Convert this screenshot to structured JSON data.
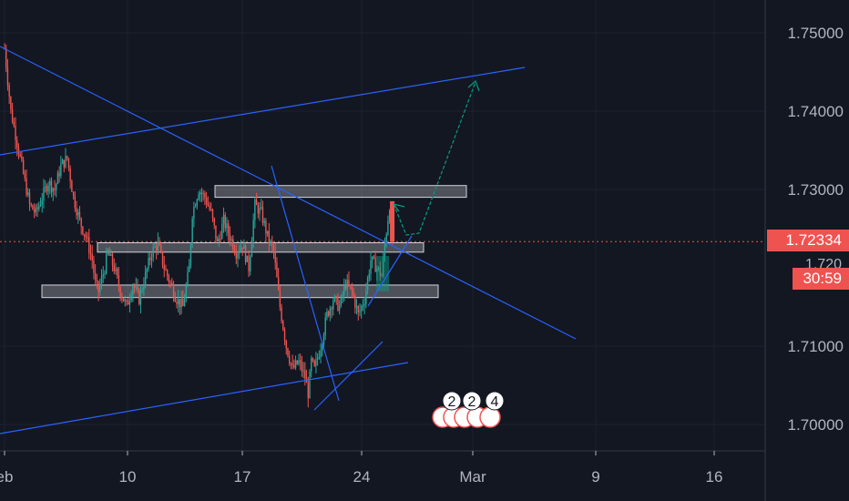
{
  "colors": {
    "background": "#131722",
    "grid": "#1e222d",
    "up": "#26a69a",
    "down": "#ef5350",
    "trendline": "#2962ff",
    "arrow": "#089981",
    "axis_text": "#b2b5be",
    "zone_fill": "rgba(255,255,255,0.25)",
    "zone_stroke": "#d1d4dc"
  },
  "chart_data": {
    "type": "candlestick",
    "x_tick_labels": [
      "eb",
      "10",
      "17",
      "24",
      "Mar",
      "9",
      "16"
    ],
    "y_tick_labels": [
      "1.75000",
      "1.74000",
      "1.73000",
      "1.71000",
      "1.70000"
    ],
    "ylim": [
      1.6985,
      1.7535
    ],
    "last_price": "1.72334",
    "countdown": "30:59",
    "partially_hidden_tick": "1.720",
    "event_markers": [
      "2",
      "2",
      "4"
    ],
    "price_path": [
      [
        0,
        1.748
      ],
      [
        4,
        1.74
      ],
      [
        8,
        1.736
      ],
      [
        12,
        1.732
      ],
      [
        16,
        1.728
      ],
      [
        20,
        1.727
      ],
      [
        24,
        1.729
      ],
      [
        28,
        1.731
      ],
      [
        32,
        1.73
      ],
      [
        36,
        1.733
      ],
      [
        40,
        1.734
      ],
      [
        44,
        1.729
      ],
      [
        48,
        1.726
      ],
      [
        52,
        1.724
      ],
      [
        56,
        1.721
      ],
      [
        58,
        1.718
      ],
      [
        60,
        1.717
      ],
      [
        64,
        1.72
      ],
      [
        66,
        1.722
      ],
      [
        70,
        1.72
      ],
      [
        74,
        1.717
      ],
      [
        78,
        1.715
      ],
      [
        82,
        1.718
      ],
      [
        86,
        1.716
      ],
      [
        90,
        1.719
      ],
      [
        94,
        1.722
      ],
      [
        98,
        1.723
      ],
      [
        102,
        1.72
      ],
      [
        106,
        1.718
      ],
      [
        110,
        1.716
      ],
      [
        114,
        1.715
      ],
      [
        118,
        1.72
      ],
      [
        120,
        1.727
      ],
      [
        124,
        1.73
      ],
      [
        128,
        1.729
      ],
      [
        132,
        1.727
      ],
      [
        136,
        1.723
      ],
      [
        140,
        1.726
      ],
      [
        144,
        1.724
      ],
      [
        148,
        1.722
      ],
      [
        152,
        1.723
      ],
      [
        156,
        1.72
      ],
      [
        160,
        1.728
      ],
      [
        164,
        1.727
      ],
      [
        168,
        1.724
      ],
      [
        172,
        1.722
      ],
      [
        176,
        1.715
      ],
      [
        180,
        1.71
      ],
      [
        184,
        1.707
      ],
      [
        188,
        1.708
      ],
      [
        192,
        1.706
      ],
      [
        194,
        1.704
      ],
      [
        196,
        1.708
      ],
      [
        198,
        1.707
      ],
      [
        202,
        1.71
      ],
      [
        206,
        1.714
      ],
      [
        210,
        1.716
      ],
      [
        214,
        1.715
      ],
      [
        218,
        1.718
      ],
      [
        222,
        1.717
      ],
      [
        226,
        1.714
      ],
      [
        230,
        1.716
      ],
      [
        234,
        1.721
      ],
      [
        238,
        1.72
      ],
      [
        241,
        1.719
      ],
      [
        243,
        1.723
      ],
      [
        246,
        1.728
      ],
      [
        248,
        1.7233
      ]
    ],
    "zones": [
      {
        "from": 16,
        "to": 240,
        "low": 1.7175,
        "high": 1.719
      },
      {
        "from": 0,
        "to": 215,
        "low": 1.7205,
        "high": 1.7215
      },
      {
        "from": 0,
        "to": 203,
        "low": 1.722,
        "high": 1.7235
      }
    ],
    "trendlines": [
      {
        "x1": 0,
        "y1": 1.7345,
        "x2": 318,
        "y2": 1.7455
      },
      {
        "x1": 0,
        "y1": 1.699,
        "x2": 250,
        "y2": 1.7075
      },
      {
        "x1": 0,
        "y1": 1.7475,
        "x2": 350,
        "y2": 1.711
      },
      {
        "x1": 170,
        "y1": 1.73,
        "x2": 212,
        "y2": 1.7035
      },
      {
        "x1": 190,
        "y1": 1.7025,
        "x2": 228,
        "y2": 1.711
      }
    ],
    "arrows": [
      {
        "x1": 248,
        "y1": 1.7285,
        "x2": 252,
        "y2": 1.7237
      },
      {
        "x1": 252,
        "y1": 1.7237,
        "x2": 292,
        "y2": 1.7435
      }
    ]
  }
}
